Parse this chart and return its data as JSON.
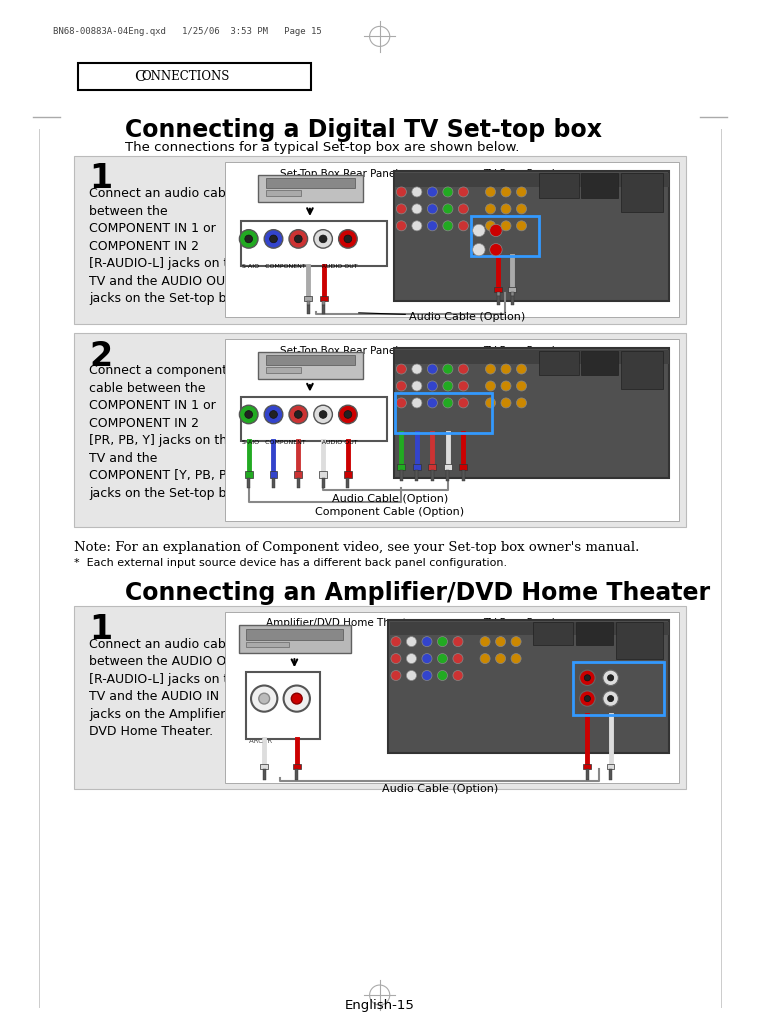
{
  "page_header": "BN68-00883A-04Eng.qxd   1/25/06  3:53 PM   Page 15",
  "connections_label": "CONNECTIONS",
  "title1": "Connecting a Digital TV Set-top box",
  "subtitle1": "The connections for a typical Set-top box are shown below.",
  "step1_num": "1",
  "step1_text": "Connect an audio cable\nbetween the\nCOMPONENT IN 1 or\nCOMPONENT IN 2\n[R-AUDIO-L] jacks on the\nTV and the AUDIO OUT\njacks on the Set-top box.",
  "step1_label_left": "Set-Top Box Rear Panel",
  "step1_label_right": "TV Rear Panel",
  "step1_cable_label": "Audio Cable (Option)",
  "step2_num": "2",
  "step2_text": "Connect a component\ncable between the\nCOMPONENT IN 1 or\nCOMPONENT IN 2\n[PR, PB, Y] jacks on the\nTV and the\nCOMPONENT [Y, PB, PR]\njacks on the Set-top box.",
  "step2_label_left": "Set-Top Box Rear Panel",
  "step2_label_right": "TV Rear Panel",
  "step2_cable_label1": "Audio Cable (Option)",
  "step2_cable_label2": "Component Cable (Option)",
  "note_text": "Note: For an explanation of Component video, see your Set-top box owner's manual.",
  "asterisk_text": "*  Each external input source device has a different back panel configuration.",
  "title2": "Connecting an Amplifier/DVD Home Theater",
  "step3_num": "1",
  "step3_text": "Connect an audio cable\nbetween the AUDIO OUT\n[R-AUDIO-L] jacks on the\nTV and the AUDIO IN\njacks on the Amplifier/\nDVD Home Theater.",
  "step3_label_left": "Amplifier/DVD Home Theater",
  "step3_label_right": "TV Rear Panel",
  "step3_cable_label": "Audio Cable (Option)",
  "page_num": "English-15",
  "bg_color": "#ffffff",
  "box_bg": "#e8e8e8",
  "border_color": "#000000",
  "gray_text": "#555555"
}
